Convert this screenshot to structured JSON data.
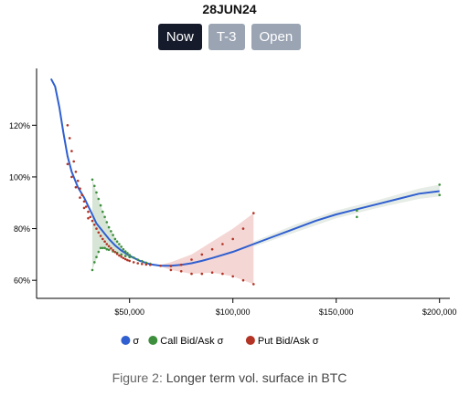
{
  "header": {
    "title": "28JUN24",
    "buttons": [
      {
        "label": "Now",
        "active": true
      },
      {
        "label": "T-3",
        "active": false
      },
      {
        "label": "Open",
        "active": false
      }
    ]
  },
  "caption": {
    "label": "Figure 2:",
    "text": "Longer term vol. surface in BTC"
  },
  "colors": {
    "sigma": "#2f5fd0",
    "call": "#3d8f3d",
    "put": "#b33324",
    "call_band": "#c9dcc9",
    "put_band": "#f0c8c6",
    "fit_band": "#dde6dd"
  },
  "chart_data": {
    "type": "scatter",
    "xlim": [
      5000,
      205000
    ],
    "ylim": [
      0.53,
      1.42
    ],
    "x_ticks": [
      50000,
      100000,
      150000,
      200000
    ],
    "x_tick_labels": [
      "$50,000",
      "$100,000",
      "$150,000",
      "$200,000"
    ],
    "y_ticks": [
      0.6,
      0.8,
      1.0,
      1.2
    ],
    "y_tick_labels": [
      "60%",
      "80%",
      "100%",
      "120%"
    ],
    "legend_position": "bottom",
    "series": [
      {
        "name": "σ",
        "kind": "line",
        "x": [
          12000,
          14000,
          16000,
          18000,
          20000,
          22000,
          25000,
          28000,
          31000,
          34000,
          37000,
          40000,
          43000,
          46000,
          50000,
          55000,
          60000,
          65000,
          70000,
          75000,
          80000,
          85000,
          90000,
          95000,
          100000,
          105000,
          110000,
          120000,
          130000,
          140000,
          150000,
          160000,
          170000,
          180000,
          190000,
          200000
        ],
        "y": [
          1.38,
          1.35,
          1.27,
          1.17,
          1.08,
          1.02,
          0.96,
          0.92,
          0.87,
          0.82,
          0.79,
          0.76,
          0.735,
          0.715,
          0.695,
          0.675,
          0.662,
          0.656,
          0.656,
          0.66,
          0.666,
          0.675,
          0.686,
          0.698,
          0.71,
          0.725,
          0.74,
          0.77,
          0.8,
          0.83,
          0.855,
          0.875,
          0.895,
          0.915,
          0.935,
          0.945
        ]
      },
      {
        "name": "Call Bid/Ask σ",
        "kind": "points",
        "x": [
          32000,
          33000,
          34000,
          35000,
          36000,
          37000,
          38000,
          39000,
          40000,
          41000,
          42000,
          43000,
          44000,
          45000,
          46000,
          47000,
          48000,
          49000,
          50000,
          52000,
          54000,
          56000,
          58000,
          60000,
          32000,
          33000,
          34000,
          35000,
          36000,
          37000,
          38000,
          39000,
          40000,
          42000,
          44000,
          46000,
          48000,
          50000,
          160000,
          200000,
          160000,
          200000
        ],
        "y": [
          0.99,
          0.965,
          0.94,
          0.915,
          0.89,
          0.865,
          0.845,
          0.825,
          0.805,
          0.79,
          0.775,
          0.76,
          0.75,
          0.74,
          0.73,
          0.72,
          0.712,
          0.705,
          0.698,
          0.688,
          0.68,
          0.674,
          0.668,
          0.664,
          0.64,
          0.67,
          0.69,
          0.71,
          0.725,
          0.725,
          0.725,
          0.72,
          0.718,
          0.712,
          0.706,
          0.7,
          0.694,
          0.69,
          0.87,
          0.97,
          0.845,
          0.93
        ]
      },
      {
        "name": "Put Bid/Ask σ",
        "kind": "points",
        "x": [
          20000,
          21000,
          22000,
          23000,
          24000,
          25000,
          26000,
          27000,
          28000,
          29000,
          30000,
          31000,
          32000,
          33000,
          34000,
          35000,
          36000,
          37000,
          38000,
          39000,
          40000,
          41000,
          42000,
          43000,
          44000,
          45000,
          46000,
          47000,
          48000,
          49000,
          50000,
          52000,
          54000,
          56000,
          58000,
          60000,
          65000,
          70000,
          75000,
          80000,
          85000,
          90000,
          95000,
          100000,
          105000,
          110000,
          20000,
          22000,
          24000,
          26000,
          28000,
          30000,
          70000,
          75000,
          80000,
          85000,
          90000,
          95000,
          100000,
          105000,
          110000
        ],
        "y": [
          1.2,
          1.15,
          1.1,
          1.06,
          1.02,
          0.985,
          0.955,
          0.93,
          0.905,
          0.885,
          0.865,
          0.845,
          0.83,
          0.815,
          0.8,
          0.785,
          0.772,
          0.76,
          0.75,
          0.74,
          0.732,
          0.724,
          0.716,
          0.709,
          0.702,
          0.696,
          0.691,
          0.686,
          0.682,
          0.678,
          0.675,
          0.67,
          0.666,
          0.663,
          0.661,
          0.66,
          0.656,
          0.655,
          0.66,
          0.68,
          0.7,
          0.72,
          0.74,
          0.76,
          0.8,
          0.86,
          1.05,
          1.0,
          0.96,
          0.92,
          0.88,
          0.84,
          0.64,
          0.635,
          0.625,
          0.625,
          0.63,
          0.625,
          0.615,
          0.6,
          0.585
        ]
      }
    ],
    "bands": [
      {
        "kind": "call",
        "x": [
          32000,
          36000,
          40000,
          44000,
          48000,
          52000,
          56000,
          60000
        ],
        "upper": [
          0.99,
          0.89,
          0.805,
          0.75,
          0.712,
          0.688,
          0.674,
          0.664
        ],
        "lower": [
          0.64,
          0.725,
          0.718,
          0.706,
          0.694,
          0.682,
          0.672,
          0.662
        ]
      },
      {
        "kind": "put",
        "x": [
          65000,
          70000,
          80000,
          90000,
          100000,
          110000
        ],
        "upper": [
          0.66,
          0.67,
          0.7,
          0.75,
          0.8,
          0.86
        ],
        "lower": [
          0.654,
          0.64,
          0.625,
          0.63,
          0.615,
          0.585
        ]
      },
      {
        "kind": "fit",
        "x": [
          110000,
          130000,
          150000,
          170000,
          190000,
          200000
        ],
        "upper": [
          0.75,
          0.815,
          0.87,
          0.91,
          0.955,
          0.97
        ],
        "lower": [
          0.73,
          0.785,
          0.84,
          0.88,
          0.915,
          0.925
        ]
      }
    ]
  }
}
